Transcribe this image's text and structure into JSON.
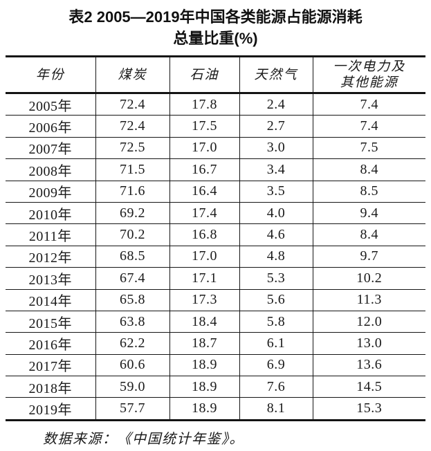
{
  "title": {
    "line1": "表2 2005—2019年中国各类能源占能源消耗",
    "line2": "总量比重(%)"
  },
  "table": {
    "headers": [
      "年份",
      "煤炭",
      "石油",
      "天然气",
      "一次电力及\n其他能源"
    ],
    "rows": [
      [
        "2005年",
        "72.4",
        "17.8",
        "2.4",
        "7.4"
      ],
      [
        "2006年",
        "72.4",
        "17.5",
        "2.7",
        "7.4"
      ],
      [
        "2007年",
        "72.5",
        "17.0",
        "3.0",
        "7.5"
      ],
      [
        "2008年",
        "71.5",
        "16.7",
        "3.4",
        "8.4"
      ],
      [
        "2009年",
        "71.6",
        "16.4",
        "3.5",
        "8.5"
      ],
      [
        "2010年",
        "69.2",
        "17.4",
        "4.0",
        "9.4"
      ],
      [
        "2011年",
        "70.2",
        "16.8",
        "4.6",
        "8.4"
      ],
      [
        "2012年",
        "68.5",
        "17.0",
        "4.8",
        "9.7"
      ],
      [
        "2013年",
        "67.4",
        "17.1",
        "5.3",
        "10.2"
      ],
      [
        "2014年",
        "65.8",
        "17.3",
        "5.6",
        "11.3"
      ],
      [
        "2015年",
        "63.8",
        "18.4",
        "5.8",
        "12.0"
      ],
      [
        "2016年",
        "62.2",
        "18.7",
        "6.1",
        "13.0"
      ],
      [
        "2017年",
        "60.6",
        "18.9",
        "6.9",
        "13.6"
      ],
      [
        "2018年",
        "59.0",
        "18.9",
        "7.6",
        "14.5"
      ],
      [
        "2019年",
        "57.7",
        "18.9",
        "8.1",
        "15.3"
      ]
    ]
  },
  "footer": {
    "source_note": "数据来源：《中国统计年鉴》。"
  },
  "chart_data": {
    "type": "table",
    "title": "表2 2005—2019年中国各类能源占能源消耗总量比重(%)",
    "unit": "%",
    "columns": [
      "年份",
      "煤炭",
      "石油",
      "天然气",
      "一次电力及其他能源"
    ],
    "categories": [
      "2005",
      "2006",
      "2007",
      "2008",
      "2009",
      "2010",
      "2011",
      "2012",
      "2013",
      "2014",
      "2015",
      "2016",
      "2017",
      "2018",
      "2019"
    ],
    "series": [
      {
        "name": "煤炭",
        "values": [
          72.4,
          72.4,
          72.5,
          71.5,
          71.6,
          69.2,
          70.2,
          68.5,
          67.4,
          65.8,
          63.8,
          62.2,
          60.6,
          59.0,
          57.7
        ]
      },
      {
        "name": "石油",
        "values": [
          17.8,
          17.5,
          17.0,
          16.7,
          16.4,
          17.4,
          16.8,
          17.0,
          17.1,
          17.3,
          18.4,
          18.7,
          18.9,
          18.9,
          18.9
        ]
      },
      {
        "name": "天然气",
        "values": [
          2.4,
          2.7,
          3.0,
          3.4,
          3.5,
          4.0,
          4.6,
          4.8,
          5.3,
          5.6,
          5.8,
          6.1,
          6.9,
          7.6,
          8.1
        ]
      },
      {
        "name": "一次电力及其他能源",
        "values": [
          7.4,
          7.4,
          7.5,
          8.4,
          8.5,
          9.4,
          8.4,
          9.7,
          10.2,
          11.3,
          12.0,
          13.0,
          13.6,
          14.5,
          15.3
        ]
      }
    ],
    "source": "数据来源：《中国统计年鉴》。"
  }
}
